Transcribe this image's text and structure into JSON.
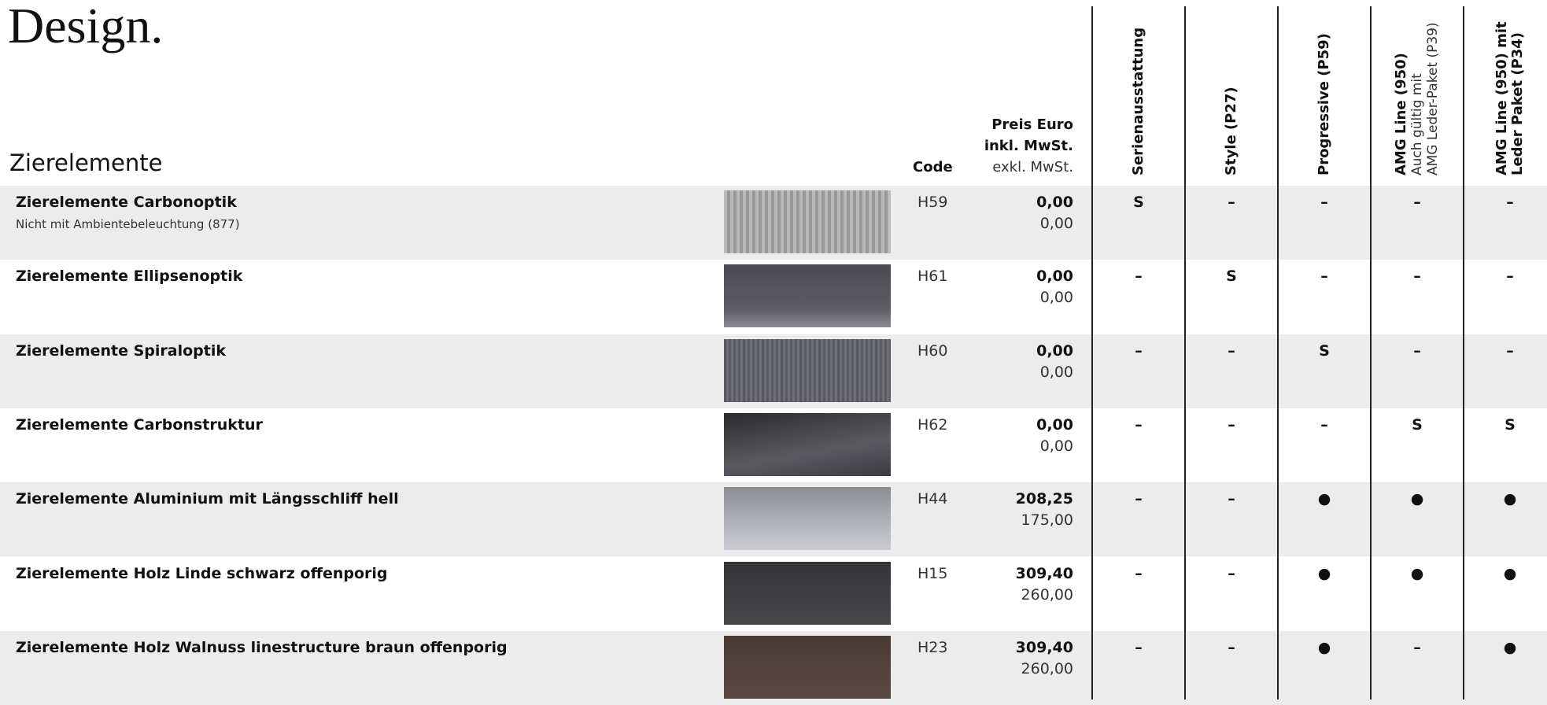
{
  "header": {
    "title": "Design.",
    "section": "Zierelemente",
    "code_label": "Code",
    "price_label": [
      "Preis Euro",
      "inkl. MwSt."
    ],
    "price_sub": "exkl. MwSt."
  },
  "columns": [
    {
      "lines": [
        "Serienausstattung"
      ],
      "sub": []
    },
    {
      "lines": [
        "Style (P27)"
      ],
      "sub": []
    },
    {
      "lines": [
        "Progressive (P59)"
      ],
      "sub": []
    },
    {
      "lines": [
        "AMG Line (950)"
      ],
      "sub": [
        "Auch gültig mit",
        "AMG Leder-Paket (P39)"
      ]
    },
    {
      "lines": [
        "AMG Line (950) mit",
        "Leder Paket (P34)"
      ],
      "sub": []
    }
  ],
  "rows": [
    {
      "name": "Zierelemente Carbonoptik",
      "note": "Nicht mit Ambientebeleuchtung (877)",
      "code": "H59",
      "price_incl": "0,00",
      "price_excl": "0,00",
      "marks": [
        "S",
        "–",
        "–",
        "–",
        "–"
      ]
    },
    {
      "name": "Zierelemente Ellipsenoptik",
      "code": "H61",
      "price_incl": "0,00",
      "price_excl": "0,00",
      "marks": [
        "–",
        "S",
        "–",
        "–",
        "–"
      ]
    },
    {
      "name": "Zierelemente Spiraloptik",
      "code": "H60",
      "price_incl": "0,00",
      "price_excl": "0,00",
      "marks": [
        "–",
        "–",
        "S",
        "–",
        "–"
      ]
    },
    {
      "name": "Zierelemente Carbonstruktur",
      "code": "H62",
      "price_incl": "0,00",
      "price_excl": "0,00",
      "marks": [
        "–",
        "–",
        "–",
        "S",
        "S"
      ]
    },
    {
      "name": "Zierelemente Aluminium mit Längsschliff hell",
      "code": "H44",
      "price_incl": "208,25",
      "price_excl": "175,00",
      "marks": [
        "–",
        "–",
        "●",
        "●",
        "●"
      ]
    },
    {
      "name": "Zierelemente Holz Linde schwarz offenporig",
      "code": "H15",
      "price_incl": "309,40",
      "price_excl": "260,00",
      "marks": [
        "–",
        "–",
        "●",
        "●",
        "●"
      ]
    },
    {
      "name": "Zierelemente Holz Walnuss linestructure braun offenporig",
      "code": "H23",
      "price_incl": "309,40",
      "price_excl": "260,00",
      "marks": [
        "–",
        "–",
        "●",
        "–",
        "●"
      ]
    }
  ]
}
